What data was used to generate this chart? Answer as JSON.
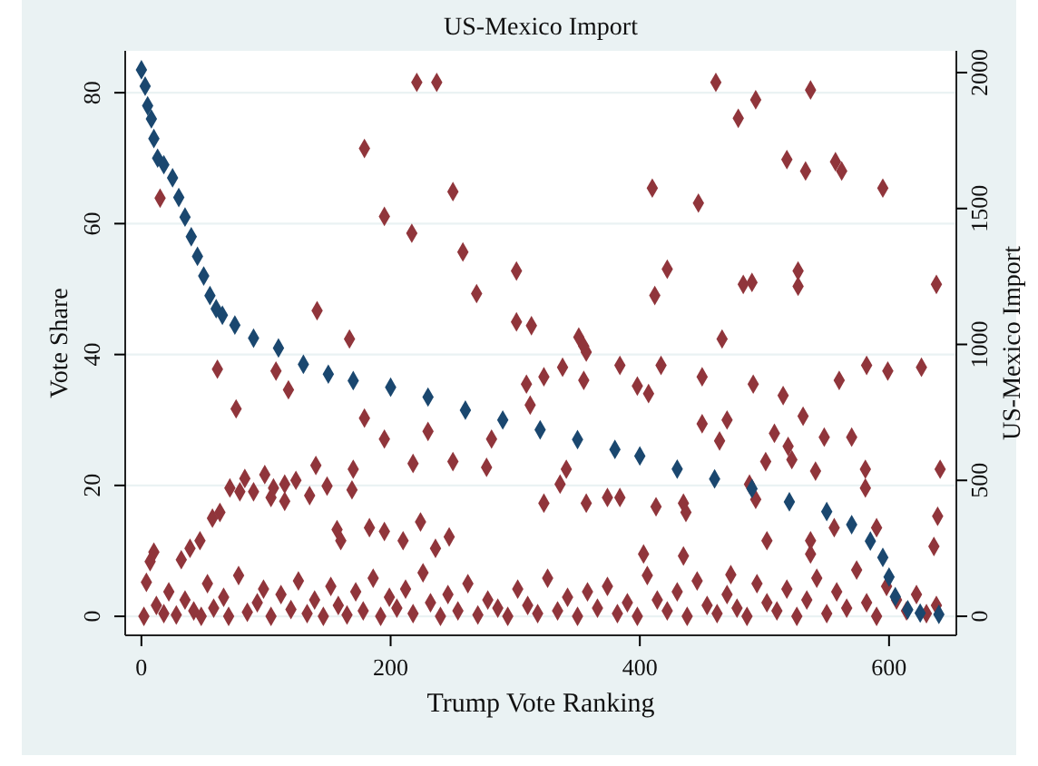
{
  "chart_data": {
    "type": "scatter",
    "title": "US-Mexico Import",
    "xlabel": "Trump Vote Ranking",
    "ylabel": "Vote Share",
    "y2label": "US-Mexico Import",
    "xlim": [
      -13,
      654
    ],
    "xticks": [
      0,
      200,
      400,
      600
    ],
    "ylim": [
      -2.9,
      86.4
    ],
    "yticks": [
      0,
      20,
      40,
      60,
      80
    ],
    "y2lim": [
      -70,
      2080
    ],
    "y2ticks": [
      0,
      500,
      1000,
      1500,
      2000
    ],
    "grid": "y",
    "marker": "diamond",
    "series": [
      {
        "color": "#1a476f",
        "x": [
          0,
          3,
          5,
          8,
          10,
          13,
          18,
          25,
          30,
          35,
          40,
          45,
          50,
          55,
          60,
          65,
          75,
          90,
          110,
          130,
          150,
          170,
          200,
          230,
          260,
          290,
          320,
          350,
          380,
          400,
          430,
          460,
          490,
          520,
          550,
          570,
          585,
          595,
          600,
          605,
          615,
          625,
          640
        ],
        "values": [
          83.5,
          81,
          78,
          76,
          73,
          70,
          69,
          67,
          64,
          61,
          58,
          55,
          52,
          49,
          47,
          46,
          44.5,
          42.5,
          41,
          38.5,
          37,
          36,
          35,
          33.5,
          31.5,
          30,
          28.5,
          27,
          25.5,
          24.5,
          22.5,
          21,
          19.5,
          17.5,
          16,
          14,
          11.5,
          9,
          6,
          3,
          1,
          0.5,
          0.3
        ]
      },
      {
        "color": "#90353b",
        "axis": "y2",
        "x": [
          461,
          537,
          493,
          479,
          518,
          533,
          557,
          562,
          595,
          410,
          447,
          301,
          422,
          412,
          483,
          490,
          527,
          527,
          638,
          301,
          313,
          351,
          466,
          355,
          357,
          221,
          237,
          179,
          195,
          217,
          250,
          15,
          269,
          258,
          141,
          167,
          108,
          61,
          118,
          76,
          104,
          115,
          140,
          170,
          179,
          195,
          218,
          230,
          250,
          277,
          281,
          4,
          7,
          10,
          32,
          39,
          47,
          57,
          63,
          71,
          79,
          83,
          90,
          99,
          106,
          115,
          124,
          135,
          149,
          157,
          160,
          169,
          183,
          195,
          210,
          224,
          236,
          247,
          309,
          323,
          338,
          355,
          384,
          398,
          407,
          417,
          450,
          312,
          341,
          336,
          323,
          357,
          374,
          384,
          403,
          413,
          435,
          437,
          450,
          464,
          470,
          491,
          515,
          531,
          508,
          519,
          522,
          501,
          541,
          548,
          560,
          570,
          581,
          582,
          599,
          581,
          626,
          641,
          639,
          636,
          556,
          590,
          488,
          493,
          435,
          473,
          502,
          537,
          537,
          2,
          12,
          18,
          22,
          28,
          35,
          42,
          48,
          53,
          58,
          66,
          70,
          78,
          85,
          93,
          98,
          104,
          112,
          120,
          126,
          133,
          139,
          146,
          152,
          158,
          165,
          172,
          178,
          186,
          192,
          199,
          205,
          212,
          218,
          226,
          232,
          240,
          246,
          254,
          262,
          270,
          278,
          286,
          294,
          302,
          310,
          318,
          326,
          334,
          342,
          350,
          358,
          366,
          374,
          382,
          390,
          398,
          406,
          414,
          422,
          430,
          438,
          446,
          454,
          462,
          470,
          478,
          486,
          494,
          502,
          510,
          518,
          526,
          534,
          542,
          550,
          558,
          566,
          574,
          582,
          590,
          598,
          606,
          614,
          622,
          630,
          638
        ],
        "values": [
          1964,
          1936,
          1900,
          1832,
          1680,
          1638,
          1672,
          1638,
          1575,
          1575,
          1520,
          1270,
          1277,
          1180,
          1221,
          1228,
          1270,
          1214,
          1221,
          1083,
          1069,
          1027,
          1020,
          993,
          972,
          1964,
          1964,
          1721,
          1471,
          1409,
          1562,
          1538,
          1187,
          1340,
          1124,
          1020,
          902,
          909,
          833,
          763,
          437,
          486,
          555,
          541,
          729,
          652,
          562,
          680,
          569,
          548,
          652,
          125,
          201,
          236,
          208,
          250,
          278,
          361,
          382,
          472,
          458,
          507,
          458,
          521,
          472,
          423,
          500,
          444,
          479,
          319,
          278,
          465,
          326,
          312,
          278,
          347,
          250,
          292,
          854,
          881,
          916,
          868,
          923,
          847,
          819,
          923,
          881,
          777,
          541,
          486,
          416,
          416,
          437,
          437,
          229,
          403,
          416,
          382,
          708,
          645,
          722,
          854,
          812,
          736,
          673,
          625,
          576,
          569,
          534,
          659,
          868,
          659,
          541,
          923,
          902,
          472,
          916,
          541,
          368,
          257,
          326,
          326,
          486,
          430,
          222,
          153,
          278,
          278,
          229,
          0,
          40,
          10,
          90,
          5,
          60,
          20,
          0,
          120,
          30,
          70,
          0,
          150,
          15,
          50,
          100,
          0,
          80,
          25,
          130,
          10,
          60,
          0,
          110,
          40,
          5,
          90,
          20,
          140,
          0,
          70,
          30,
          100,
          10,
          160,
          50,
          0,
          80,
          20,
          120,
          5,
          60,
          30,
          0,
          100,
          40,
          10,
          140,
          20,
          70,
          0,
          90,
          30,
          110,
          10,
          50,
          0,
          150,
          60,
          20,
          90,
          0,
          130,
          40,
          10,
          80,
          30,
          0,
          120,
          50,
          20,
          100,
          0,
          60,
          140,
          10,
          90,
          30,
          170,
          50,
          0,
          110,
          60,
          20,
          80,
          10,
          40
        ]
      }
    ]
  }
}
